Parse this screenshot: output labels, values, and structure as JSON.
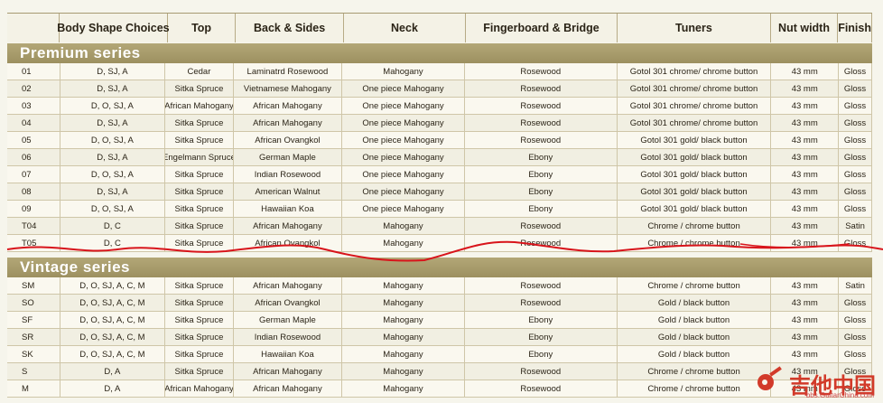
{
  "columns": [
    "",
    "Body Shape Choices",
    "Top",
    "Back & Sides",
    "Neck",
    "Fingerboard & Bridge",
    "Tuners",
    "Nut width",
    "Finish"
  ],
  "sections": [
    {
      "title": "Premium series",
      "rows": [
        [
          "01",
          "D, SJ, A",
          "Cedar",
          "Laminatrd Rosewood",
          "Mahogany",
          "Rosewood",
          "Gotol 301 chrome/ chrome button",
          "43 mm",
          "Gloss"
        ],
        [
          "02",
          "D, SJ, A",
          "Sitka Spruce",
          "Vietnamese Mahogany",
          "One piece Mahogany",
          "Rosewood",
          "Gotol 301 chrome/ chrome button",
          "43 mm",
          "Gloss"
        ],
        [
          "03",
          "D, O, SJ, A",
          "African Mahogany",
          "African Mahogany",
          "One piece Mahogany",
          "Rosewood",
          "Gotol 301 chrome/ chrome button",
          "43 mm",
          "Gloss"
        ],
        [
          "04",
          "D, SJ, A",
          "Sitka Spruce",
          "African Mahogany",
          "One piece Mahogany",
          "Rosewood",
          "Gotol 301 chrome/ chrome button",
          "43 mm",
          "Gloss"
        ],
        [
          "05",
          "D, O, SJ, A",
          "Sitka Spruce",
          "African Ovangkol",
          "One piece Mahogany",
          "Rosewood",
          "Gotol 301 gold/ black button",
          "43 mm",
          "Gloss"
        ],
        [
          "06",
          "D, SJ, A",
          "Engelmann Spruce",
          "German Maple",
          "One piece Mahogany",
          "Ebony",
          "Gotol 301 gold/ black button",
          "43 mm",
          "Gloss"
        ],
        [
          "07",
          "D, O, SJ, A",
          "Sitka Spruce",
          "Indian Rosewood",
          "One piece Mahogany",
          "Ebony",
          "Gotol 301 gold/ black button",
          "43 mm",
          "Gloss"
        ],
        [
          "08",
          "D, SJ, A",
          "Sitka Spruce",
          "American Walnut",
          "One piece Mahogany",
          "Ebony",
          "Gotol 301 gold/ black button",
          "43 mm",
          "Gloss"
        ],
        [
          "09",
          "D, O, SJ, A",
          "Sitka Spruce",
          "Hawaiian Koa",
          "One piece Mahogany",
          "Ebony",
          "Gotol 301 gold/ black button",
          "43 mm",
          "Gloss"
        ],
        [
          "T04",
          "D, C",
          "Sitka Spruce",
          "African Mahogany",
          "Mahogany",
          "Rosewood",
          "Chrome / chrome button",
          "43 mm",
          "Satin"
        ],
        [
          "T05",
          "D, C",
          "Sitka Spruce",
          "African Ovangkol",
          "Mahogany",
          "Rosewood",
          "Chrome / chrome button",
          "43 mm",
          "Gloss"
        ]
      ]
    },
    {
      "title": "Vintage series",
      "rows": [
        [
          "SM",
          "D, O, SJ, A, C, M",
          "Sitka Spruce",
          "African Mahogany",
          "Mahogany",
          "Rosewood",
          "Chrome / chrome button",
          "43 mm",
          "Satin"
        ],
        [
          "SO",
          "D, O, SJ, A, C, M",
          "Sitka Spruce",
          "African Ovangkol",
          "Mahogany",
          "Rosewood",
          "Gold / black button",
          "43 mm",
          "Gloss"
        ],
        [
          "SF",
          "D, O, SJ, A, C, M",
          "Sitka Spruce",
          "German Maple",
          "Mahogany",
          "Ebony",
          "Gold / black button",
          "43 mm",
          "Gloss"
        ],
        [
          "SR",
          "D, O, SJ, A, C, M",
          "Sitka Spruce",
          "Indian Rosewood",
          "Mahogany",
          "Ebony",
          "Gold / black button",
          "43 mm",
          "Gloss"
        ],
        [
          "SK",
          "D, O, SJ, A, C, M",
          "Sitka Spruce",
          "Hawaiian Koa",
          "Mahogany",
          "Ebony",
          "Gold / black button",
          "43 mm",
          "Gloss"
        ],
        [
          "S",
          "D, A",
          "Sitka Spruce",
          "African Mahogany",
          "Mahogany",
          "Rosewood",
          "Chrome / chrome button",
          "43 mm",
          "Gloss"
        ],
        [
          "M",
          "D, A",
          "African Mahogany",
          "African Mahogany",
          "Mahogany",
          "Rosewood",
          "Chrome / chrome button",
          "43 mm",
          "Gloss"
        ]
      ]
    }
  ],
  "watermark": {
    "text": "吉他中国",
    "url": "bbs.GuitarChina.com"
  },
  "colors": {
    "band": "#a99c6c",
    "annotation_red": "#d8141b"
  }
}
